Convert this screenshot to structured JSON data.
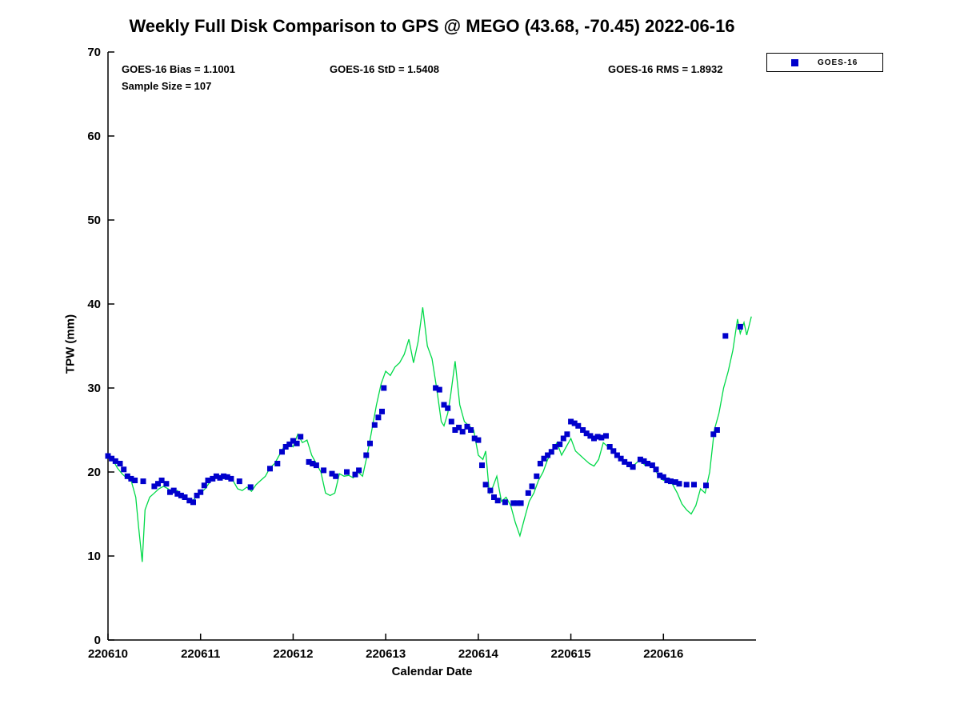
{
  "title": "Weekly Full Disk Comparison to GPS @ MEGO (43.68, -70.45) 2022-06-16",
  "annotations": {
    "bias": "GOES-16 Bias = 1.1001",
    "std": "GOES-16 StD = 1.5408",
    "rms": "GOES-16 RMS = 1.8932",
    "sample_size": "Sample Size = 107"
  },
  "legend": {
    "entries": [
      {
        "label": "GOES-16",
        "marker": "square",
        "marker_color": "#0000CC"
      }
    ]
  },
  "chart_data": {
    "type": "line",
    "title": "Weekly Full Disk Comparison to GPS @ MEGO (43.68, -70.45) 2022-06-16",
    "xlabel": "Calendar Date",
    "ylabel": "TPW (mm)",
    "xlim": [
      0,
      7
    ],
    "ylim": [
      0,
      70
    ],
    "yticks": [
      0,
      10,
      20,
      30,
      40,
      50,
      60,
      70
    ],
    "xticks": [
      {
        "pos": 0,
        "label": "220610"
      },
      {
        "pos": 1,
        "label": "220611"
      },
      {
        "pos": 2,
        "label": "220612"
      },
      {
        "pos": 3,
        "label": "220613"
      },
      {
        "pos": 4,
        "label": "220614"
      },
      {
        "pos": 5,
        "label": "220615"
      },
      {
        "pos": 6,
        "label": "220616"
      }
    ],
    "x_axis_note": "x values are day offsets from calendar date 220610",
    "series": [
      {
        "name": "GPS",
        "plot_type": "line",
        "color": "#00D948",
        "points": [
          [
            0,
            21.8
          ],
          [
            0.05,
            21.5
          ],
          [
            0.1,
            20.5
          ],
          [
            0.15,
            19.8
          ],
          [
            0.2,
            19.3
          ],
          [
            0.25,
            19
          ],
          [
            0.3,
            17
          ],
          [
            0.33,
            13.5
          ],
          [
            0.37,
            9.3
          ],
          [
            0.4,
            15.5
          ],
          [
            0.45,
            17
          ],
          [
            0.5,
            17.5
          ],
          [
            0.55,
            18
          ],
          [
            0.6,
            18.3
          ],
          [
            0.65,
            18
          ],
          [
            0.7,
            17.5
          ],
          [
            0.75,
            17.8
          ],
          [
            0.8,
            17
          ],
          [
            0.85,
            16.8
          ],
          [
            0.9,
            16.4
          ],
          [
            0.95,
            17
          ],
          [
            1,
            17.5
          ],
          [
            1.05,
            18
          ],
          [
            1.1,
            18.8
          ],
          [
            1.15,
            19.3
          ],
          [
            1.2,
            19.5
          ],
          [
            1.25,
            19.2
          ],
          [
            1.3,
            19.4
          ],
          [
            1.35,
            19
          ],
          [
            1.4,
            18
          ],
          [
            1.45,
            17.8
          ],
          [
            1.5,
            18.2
          ],
          [
            1.55,
            17.7
          ],
          [
            1.6,
            18.5
          ],
          [
            1.65,
            19
          ],
          [
            1.7,
            19.5
          ],
          [
            1.75,
            20.5
          ],
          [
            1.8,
            21
          ],
          [
            1.85,
            22
          ],
          [
            1.9,
            23
          ],
          [
            1.95,
            23.5
          ],
          [
            2,
            23
          ],
          [
            2.05,
            24.5
          ],
          [
            2.1,
            23.5
          ],
          [
            2.15,
            23.8
          ],
          [
            2.2,
            22
          ],
          [
            2.25,
            21
          ],
          [
            2.3,
            20
          ],
          [
            2.35,
            17.5
          ],
          [
            2.4,
            17.2
          ],
          [
            2.45,
            17.5
          ],
          [
            2.5,
            19.8
          ],
          [
            2.55,
            19.5
          ],
          [
            2.6,
            19.6
          ],
          [
            2.65,
            19.3
          ],
          [
            2.7,
            20
          ],
          [
            2.75,
            19.5
          ],
          [
            2.8,
            22
          ],
          [
            2.85,
            25
          ],
          [
            2.9,
            28
          ],
          [
            2.95,
            30.5
          ],
          [
            3,
            32
          ],
          [
            3.05,
            31.5
          ],
          [
            3.1,
            32.5
          ],
          [
            3.15,
            33
          ],
          [
            3.2,
            34
          ],
          [
            3.25,
            35.8
          ],
          [
            3.3,
            33
          ],
          [
            3.35,
            35.5
          ],
          [
            3.4,
            39.6
          ],
          [
            3.45,
            35
          ],
          [
            3.5,
            33.5
          ],
          [
            3.55,
            30
          ],
          [
            3.6,
            26
          ],
          [
            3.63,
            25.5
          ],
          [
            3.67,
            27
          ],
          [
            3.7,
            29
          ],
          [
            3.75,
            33.2
          ],
          [
            3.8,
            28
          ],
          [
            3.85,
            26
          ],
          [
            3.9,
            25.5
          ],
          [
            3.95,
            25
          ],
          [
            4,
            22
          ],
          [
            4.05,
            21.5
          ],
          [
            4.08,
            22.5
          ],
          [
            4.12,
            17.5
          ],
          [
            4.15,
            18
          ],
          [
            4.2,
            19.5
          ],
          [
            4.25,
            16.5
          ],
          [
            4.3,
            17
          ],
          [
            4.35,
            16
          ],
          [
            4.4,
            14
          ],
          [
            4.45,
            12.4
          ],
          [
            4.5,
            14.5
          ],
          [
            4.55,
            16.5
          ],
          [
            4.6,
            17.5
          ],
          [
            4.65,
            19
          ],
          [
            4.7,
            20
          ],
          [
            4.75,
            21.5
          ],
          [
            4.8,
            22.5
          ],
          [
            4.85,
            23.5
          ],
          [
            4.9,
            22
          ],
          [
            4.95,
            23
          ],
          [
            5,
            24
          ],
          [
            5.05,
            22.5
          ],
          [
            5.1,
            22
          ],
          [
            5.15,
            21.5
          ],
          [
            5.2,
            21
          ],
          [
            5.25,
            20.7
          ],
          [
            5.3,
            21.5
          ],
          [
            5.35,
            23.5
          ],
          [
            5.4,
            23
          ],
          [
            5.45,
            22.5
          ],
          [
            5.5,
            22
          ],
          [
            5.55,
            21.5
          ],
          [
            5.6,
            21
          ],
          [
            5.65,
            20.5
          ],
          [
            5.7,
            21
          ],
          [
            5.75,
            21.5
          ],
          [
            5.8,
            20.8
          ],
          [
            5.85,
            21
          ],
          [
            5.9,
            20.5
          ],
          [
            5.95,
            19.5
          ],
          [
            6,
            19
          ],
          [
            6.05,
            19.3
          ],
          [
            6.1,
            18.5
          ],
          [
            6.15,
            17.5
          ],
          [
            6.2,
            16.2
          ],
          [
            6.25,
            15.5
          ],
          [
            6.3,
            15
          ],
          [
            6.35,
            16
          ],
          [
            6.4,
            18
          ],
          [
            6.45,
            17.5
          ],
          [
            6.5,
            20
          ],
          [
            6.55,
            25
          ],
          [
            6.6,
            27
          ],
          [
            6.65,
            30
          ],
          [
            6.7,
            32
          ],
          [
            6.75,
            34.5
          ],
          [
            6.8,
            38.2
          ],
          [
            6.83,
            36.5
          ],
          [
            6.87,
            37.8
          ],
          [
            6.9,
            36.3
          ],
          [
            6.95,
            38.5
          ]
        ]
      },
      {
        "name": "GOES-16",
        "plot_type": "scatter",
        "marker": "square",
        "color": "#0000CC",
        "points": [
          [
            0,
            21.9
          ],
          [
            0.04,
            21.6
          ],
          [
            0.08,
            21.3
          ],
          [
            0.13,
            21
          ],
          [
            0.17,
            20.3
          ],
          [
            0.21,
            19.5
          ],
          [
            0.25,
            19.2
          ],
          [
            0.29,
            19
          ],
          [
            0.38,
            18.9
          ],
          [
            0.5,
            18.3
          ],
          [
            0.54,
            18.6
          ],
          [
            0.58,
            19
          ],
          [
            0.63,
            18.6
          ],
          [
            0.67,
            17.6
          ],
          [
            0.71,
            17.8
          ],
          [
            0.75,
            17.4
          ],
          [
            0.79,
            17.2
          ],
          [
            0.83,
            17
          ],
          [
            0.88,
            16.6
          ],
          [
            0.92,
            16.4
          ],
          [
            0.96,
            17.2
          ],
          [
            1,
            17.6
          ],
          [
            1.04,
            18.4
          ],
          [
            1.08,
            19
          ],
          [
            1.13,
            19.2
          ],
          [
            1.17,
            19.5
          ],
          [
            1.21,
            19.3
          ],
          [
            1.25,
            19.5
          ],
          [
            1.29,
            19.4
          ],
          [
            1.33,
            19.2
          ],
          [
            1.42,
            18.9
          ],
          [
            1.54,
            18.2
          ],
          [
            1.75,
            20.4
          ],
          [
            1.83,
            21
          ],
          [
            1.88,
            22.4
          ],
          [
            1.92,
            23
          ],
          [
            1.96,
            23.3
          ],
          [
            2,
            23.7
          ],
          [
            2.04,
            23.4
          ],
          [
            2.08,
            24.2
          ],
          [
            2.17,
            21.2
          ],
          [
            2.21,
            21
          ],
          [
            2.25,
            20.8
          ],
          [
            2.33,
            20.2
          ],
          [
            2.42,
            19.8
          ],
          [
            2.46,
            19.5
          ],
          [
            2.58,
            20
          ],
          [
            2.67,
            19.7
          ],
          [
            2.71,
            20.2
          ],
          [
            2.79,
            22
          ],
          [
            2.83,
            23.4
          ],
          [
            2.88,
            25.6
          ],
          [
            2.92,
            26.5
          ],
          [
            2.96,
            27.2
          ],
          [
            2.98,
            30
          ],
          [
            3.54,
            30
          ],
          [
            3.58,
            29.8
          ],
          [
            3.63,
            28
          ],
          [
            3.67,
            27.6
          ],
          [
            3.71,
            26
          ],
          [
            3.75,
            25
          ],
          [
            3.79,
            25.3
          ],
          [
            3.83,
            24.8
          ],
          [
            3.88,
            25.4
          ],
          [
            3.92,
            25
          ],
          [
            3.96,
            24
          ],
          [
            4,
            23.8
          ],
          [
            4.04,
            20.8
          ],
          [
            4.08,
            18.5
          ],
          [
            4.13,
            17.8
          ],
          [
            4.17,
            17
          ],
          [
            4.21,
            16.6
          ],
          [
            4.29,
            16.4
          ],
          [
            4.38,
            16.3
          ],
          [
            4.42,
            16.3
          ],
          [
            4.46,
            16.3
          ],
          [
            4.54,
            17.5
          ],
          [
            4.58,
            18.3
          ],
          [
            4.63,
            19.5
          ],
          [
            4.67,
            21
          ],
          [
            4.71,
            21.6
          ],
          [
            4.75,
            22
          ],
          [
            4.79,
            22.4
          ],
          [
            4.83,
            23
          ],
          [
            4.88,
            23.3
          ],
          [
            4.92,
            24
          ],
          [
            4.96,
            24.5
          ],
          [
            5,
            26
          ],
          [
            5.04,
            25.8
          ],
          [
            5.08,
            25.5
          ],
          [
            5.13,
            25
          ],
          [
            5.17,
            24.6
          ],
          [
            5.21,
            24.3
          ],
          [
            5.25,
            24
          ],
          [
            5.29,
            24.2
          ],
          [
            5.33,
            24.1
          ],
          [
            5.38,
            24.3
          ],
          [
            5.42,
            23
          ],
          [
            5.46,
            22.5
          ],
          [
            5.5,
            22
          ],
          [
            5.54,
            21.6
          ],
          [
            5.58,
            21.2
          ],
          [
            5.63,
            20.9
          ],
          [
            5.67,
            20.6
          ],
          [
            5.75,
            21.5
          ],
          [
            5.79,
            21.3
          ],
          [
            5.83,
            21
          ],
          [
            5.88,
            20.8
          ],
          [
            5.92,
            20.3
          ],
          [
            5.96,
            19.6
          ],
          [
            6,
            19.4
          ],
          [
            6.04,
            19
          ],
          [
            6.08,
            18.9
          ],
          [
            6.13,
            18.8
          ],
          [
            6.17,
            18.6
          ],
          [
            6.25,
            18.5
          ],
          [
            6.33,
            18.5
          ],
          [
            6.46,
            18.4
          ],
          [
            6.54,
            24.5
          ],
          [
            6.58,
            25
          ],
          [
            6.67,
            36.2
          ],
          [
            6.83,
            37.3
          ]
        ]
      }
    ]
  }
}
